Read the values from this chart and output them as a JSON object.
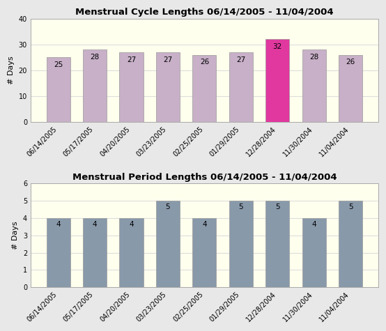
{
  "top_title": "Menstrual Cycle Lengths 06/14/2005 - 11/04/2004",
  "bottom_title": "Menstrual Period Lengths 06/14/2005 - 11/04/2004",
  "categories": [
    "06/14/2005",
    "05/17/2005",
    "04/20/2005",
    "03/23/2005",
    "02/25/2005",
    "01/29/2005",
    "12/28/2004",
    "11/30/2004",
    "11/04/2004"
  ],
  "cycle_values": [
    25,
    28,
    27,
    27,
    26,
    27,
    32,
    28,
    26
  ],
  "period_values": [
    4,
    4,
    4,
    5,
    4,
    5,
    5,
    4,
    5
  ],
  "cycle_colors": [
    "#c8b0c8",
    "#c8b0c8",
    "#c8b0c8",
    "#c8b0c8",
    "#c8b0c8",
    "#c8b0c8",
    "#e0389e",
    "#c8b0c8",
    "#c8b0c8"
  ],
  "period_color": "#8899aa",
  "ylabel": "# Days",
  "cycle_ylim": [
    0,
    40
  ],
  "period_ylim": [
    0,
    6
  ],
  "cycle_yticks": [
    0,
    10,
    20,
    30,
    40
  ],
  "period_yticks": [
    0,
    1,
    2,
    3,
    4,
    5,
    6
  ],
  "fig_bg_color": "#e8e8e8",
  "plot_bg_color": "#ffffee",
  "bar_edge_color": "#999999",
  "title_fontsize": 9.5,
  "label_fontsize": 8,
  "tick_fontsize": 7,
  "annotation_fontsize": 7.5,
  "grid_color": "#dddddd"
}
